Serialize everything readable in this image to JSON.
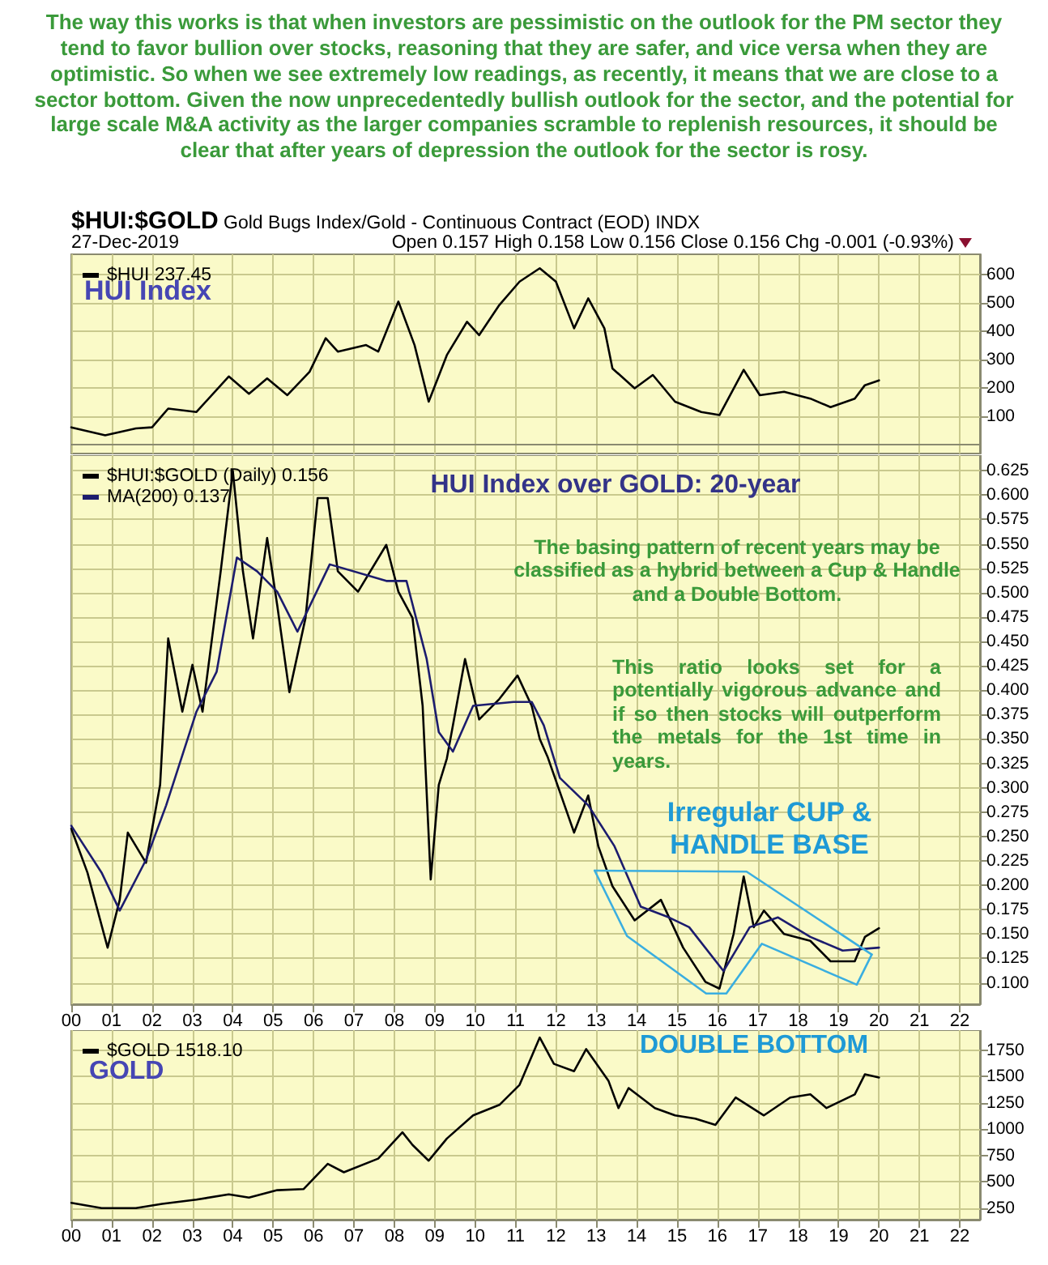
{
  "chart_data": [
    {
      "type": "line",
      "title": "$HUI:$GOLD",
      "subtitle": "Gold Bugs Index/Gold - Continuous Contract (EOD) INDX",
      "annotations": [
        "The way this works is that when investors are pessimistic on the outlook for the PM sector they tend to favor bullion over stocks, reasoning that they are safer, and vice versa when they are optimistic. So when we see extremely low readings, as recently, it means that we are close to a sector bottom. Given the now unprecedentedly bullish outlook for the sector, and the potential for large scale M&A activity as the larger companies scramble to replenish resources, it should be clear that after years of depression the outlook for the sector is rosy.",
        "27-Dec-2019",
        "Open 0.157  High 0.158  Low 0.156  Close 0.156  Chg -0.001 (-0.93%)",
        "HUI Index"
      ],
      "x": [
        2000,
        2000.84,
        2001.6,
        2002.0,
        2002.4,
        2003.1,
        2003.9,
        2004.4,
        2004.85,
        2005.35,
        2005.9,
        2006.3,
        2006.6,
        2007.3,
        2007.6,
        2008.1,
        2008.5,
        2008.85,
        2009.3,
        2009.8,
        2010.1,
        2010.6,
        2011.1,
        2011.6,
        2012.0,
        2012.45,
        2012.8,
        2013.2,
        2013.4,
        2013.95,
        2014.4,
        2014.95,
        2015.6,
        2016.05,
        2016.65,
        2017.05,
        2017.65,
        2018.3,
        2018.8,
        2019.4,
        2019.65,
        2020.0
      ],
      "series": [
        {
          "name": "$HUI 237.45",
          "color": "#000000",
          "values": [
            62,
            34,
            58,
            62,
            128,
            116,
            241,
            180,
            234,
            175,
            257,
            375,
            328,
            351,
            328,
            504,
            351,
            152,
            316,
            433,
            386,
            492,
            574,
            621,
            574,
            410,
            515,
            410,
            269,
            199,
            246,
            152,
            116,
            105,
            264,
            175,
            187,
            163,
            133,
            163,
            210,
            227
          ]
        }
      ],
      "xlim": [
        2000,
        2022.5
      ],
      "ylim": [
        -30,
        670
      ],
      "yticks": [
        100,
        200,
        300,
        400,
        500,
        600
      ],
      "xticks": [
        {
          "value": 2000,
          "label": null
        },
        {
          "value": 2001,
          "label": null
        },
        {
          "value": 2002,
          "label": null
        },
        {
          "value": 2003,
          "label": null
        },
        {
          "value": 2004,
          "label": null
        },
        {
          "value": 2005,
          "label": null
        },
        {
          "value": 2006,
          "label": null
        },
        {
          "value": 2007,
          "label": null
        },
        {
          "value": 2008,
          "label": null
        },
        {
          "value": 2009,
          "label": null
        },
        {
          "value": 2010,
          "label": null
        },
        {
          "value": 2011,
          "label": null
        },
        {
          "value": 2012,
          "label": null
        },
        {
          "value": 2013,
          "label": null
        },
        {
          "value": 2014,
          "label": null
        },
        {
          "value": 2015,
          "label": null
        },
        {
          "value": 2016,
          "label": null
        },
        {
          "value": 2017,
          "label": null
        },
        {
          "value": 2018,
          "label": null
        },
        {
          "value": 2019,
          "label": null
        },
        {
          "value": 2020,
          "label": null
        },
        {
          "value": 2021,
          "label": null
        },
        {
          "value": 2022,
          "label": null
        }
      ],
      "tick_labels": "y",
      "grid": true,
      "legend": "top left"
    },
    {
      "type": "line",
      "annotations": [
        "HUI Index over GOLD: 20-year",
        "The basing pattern of recent years may be classified as a hybrid between a Cup & Handle and a Double Bottom.",
        "This ratio looks set for a potentially vigorous advance and if so then stocks will outperform the metals for the 1st time in years.",
        "Irregular CUP & HANDLE BASE"
      ],
      "series": [
        {
          "name": "$HUI:$GOLD (Daily) 0.156",
          "color": "#000000",
          "x": [
            2000,
            2000.4,
            2000.9,
            2001.2,
            2001.4,
            2001.85,
            2002.2,
            2002.4,
            2002.75,
            2003.0,
            2003.25,
            2003.7,
            2004.0,
            2004.25,
            2004.5,
            2004.85,
            2005.1,
            2005.4,
            2005.8,
            2006.1,
            2006.35,
            2006.6,
            2007.1,
            2007.8,
            2008.1,
            2008.45,
            2008.7,
            2008.9,
            2009.1,
            2009.3,
            2009.75,
            2010.1,
            2010.6,
            2011.05,
            2011.4,
            2011.6,
            2011.8,
            2012.45,
            2012.8,
            2013.05,
            2013.4,
            2013.95,
            2014.6,
            2015.15,
            2015.7,
            2016.05,
            2016.4,
            2016.65,
            2016.9,
            2017.15,
            2017.65,
            2018.3,
            2018.8,
            2019.4,
            2019.65,
            2020.0
          ],
          "values": [
            0.258,
            0.213,
            0.136,
            0.185,
            0.254,
            0.223,
            0.303,
            0.453,
            0.378,
            0.426,
            0.378,
            0.522,
            0.625,
            0.522,
            0.453,
            0.556,
            0.487,
            0.398,
            0.474,
            0.597,
            0.597,
            0.522,
            0.501,
            0.549,
            0.501,
            0.474,
            0.384,
            0.206,
            0.303,
            0.33,
            0.432,
            0.37,
            0.391,
            0.415,
            0.384,
            0.35,
            0.331,
            0.254,
            0.292,
            0.24,
            0.199,
            0.164,
            0.185,
            0.136,
            0.101,
            0.094,
            0.15,
            0.209,
            0.157,
            0.174,
            0.15,
            0.143,
            0.122,
            0.122,
            0.147,
            0.156
          ]
        },
        {
          "name": "MA(200) 0.137",
          "color": "#1c1c6e",
          "x": [
            2000,
            2000.75,
            2001.2,
            2001.85,
            2002.35,
            2003.1,
            2003.6,
            2004.1,
            2004.6,
            2005.1,
            2005.6,
            2006.4,
            2007.8,
            2008.3,
            2008.8,
            2009.1,
            2009.45,
            2009.95,
            2010.95,
            2011.4,
            2011.7,
            2012.1,
            2012.8,
            2013.45,
            2014.1,
            2014.8,
            2015.3,
            2016.15,
            2016.8,
            2017.5,
            2018.3,
            2019.1,
            2020.0
          ],
          "values": [
            0.261,
            0.213,
            0.174,
            0.226,
            0.282,
            0.378,
            0.419,
            0.536,
            0.522,
            0.501,
            0.46,
            0.529,
            0.512,
            0.512,
            0.432,
            0.357,
            0.337,
            0.384,
            0.388,
            0.388,
            0.364,
            0.31,
            0.282,
            0.24,
            0.178,
            0.167,
            0.157,
            0.112,
            0.157,
            0.167,
            0.147,
            0.133,
            0.136
          ]
        },
        {
          "color": "#3aaee0",
          "x": [
            2012.96,
            2016.72,
            2019.82
          ],
          "values": [
            0.215,
            0.214,
            0.129
          ]
        },
        {
          "color": "#3aaee0",
          "x": [
            2012.96,
            2013.76,
            2015.72,
            2016.22,
            2017.1,
            2019.45,
            2019.82
          ],
          "values": [
            0.215,
            0.148,
            0.089,
            0.089,
            0.14,
            0.098,
            0.129
          ]
        }
      ],
      "xlim": [
        2000,
        2022.5
      ],
      "ylim": [
        0.078,
        0.641
      ],
      "yticks": [
        {
          "value": 0.1,
          "label": "0.100"
        },
        0.125,
        {
          "value": 0.15,
          "label": "0.150"
        },
        0.175,
        {
          "value": 0.2,
          "label": "0.200"
        },
        0.225,
        {
          "value": 0.25,
          "label": "0.250"
        },
        0.275,
        {
          "value": 0.3,
          "label": "0.300"
        },
        0.325,
        {
          "value": 0.35,
          "label": "0.350"
        },
        0.375,
        {
          "value": 0.4,
          "label": "0.400"
        },
        0.425,
        {
          "value": 0.45,
          "label": "0.450"
        },
        0.475,
        {
          "value": 0.5,
          "label": "0.500"
        },
        0.525,
        {
          "value": 0.55,
          "label": "0.550"
        },
        0.575,
        {
          "value": 0.6,
          "label": "0.600"
        },
        0.625
      ],
      "xticks": [
        {
          "value": 2000,
          "label": "00"
        },
        {
          "value": 2001,
          "label": "01"
        },
        {
          "value": 2002,
          "label": "02"
        },
        {
          "value": 2003,
          "label": "03"
        },
        {
          "value": 2004,
          "label": "04"
        },
        {
          "value": 2005,
          "label": "05"
        },
        {
          "value": 2006,
          "label": "06"
        },
        {
          "value": 2007,
          "label": "07"
        },
        {
          "value": 2008,
          "label": "08"
        },
        {
          "value": 2009,
          "label": "09"
        },
        {
          "value": 2010,
          "label": "10"
        },
        {
          "value": 2011,
          "label": "11"
        },
        {
          "value": 2012,
          "label": "12"
        },
        {
          "value": 2013,
          "label": "13"
        },
        {
          "value": 2014,
          "label": "14"
        },
        {
          "value": 2015,
          "label": "15"
        },
        {
          "value": 2016,
          "label": "16"
        },
        {
          "value": 2017,
          "label": "17"
        },
        {
          "value": 2018,
          "label": "18"
        },
        {
          "value": 2019,
          "label": "19"
        },
        {
          "value": 2020,
          "label": "20"
        },
        {
          "value": 2021,
          "label": "21"
        },
        {
          "value": 2022,
          "label": "22"
        }
      ],
      "grid": true,
      "legend": "top left"
    },
    {
      "type": "line",
      "annotations": [
        "GOLD",
        "DOUBLE BOTTOM"
      ],
      "x": [
        2000,
        2000.75,
        2001.6,
        2002.25,
        2003.1,
        2003.9,
        2004.4,
        2005.1,
        2005.75,
        2006.35,
        2006.75,
        2007.6,
        2008.2,
        2008.45,
        2008.85,
        2009.3,
        2009.95,
        2010.6,
        2011.1,
        2011.6,
        2011.95,
        2012.45,
        2012.75,
        2013.3,
        2013.55,
        2013.8,
        2014.45,
        2014.95,
        2015.45,
        2015.95,
        2016.45,
        2017.15,
        2017.8,
        2018.3,
        2018.7,
        2019.4,
        2019.65,
        2020.0
      ],
      "series": [
        {
          "name": "$GOLD 1518.10",
          "color": "#000000",
          "values": [
            300,
            250,
            250,
            290,
            330,
            380,
            350,
            420,
            430,
            670,
            590,
            720,
            970,
            850,
            700,
            910,
            1130,
            1230,
            1420,
            1870,
            1620,
            1550,
            1760,
            1460,
            1200,
            1390,
            1200,
            1130,
            1100,
            1040,
            1300,
            1130,
            1300,
            1330,
            1200,
            1330,
            1520,
            1490
          ]
        }
      ],
      "xlim": [
        2000,
        2022.5
      ],
      "ylim": [
        140,
        1940
      ],
      "yticks": [
        250,
        500,
        750,
        1000,
        1250,
        1500,
        1750
      ],
      "xticks": [
        {
          "value": 2000,
          "label": "00"
        },
        {
          "value": 2001,
          "label": "01"
        },
        {
          "value": 2002,
          "label": "02"
        },
        {
          "value": 2003,
          "label": "03"
        },
        {
          "value": 2004,
          "label": "04"
        },
        {
          "value": 2005,
          "label": "05"
        },
        {
          "value": 2006,
          "label": "06"
        },
        {
          "value": 2007,
          "label": "07"
        },
        {
          "value": 2008,
          "label": "08"
        },
        {
          "value": 2009,
          "label": "09"
        },
        {
          "value": 2010,
          "label": "10"
        },
        {
          "value": 2011,
          "label": "11"
        },
        {
          "value": 2012,
          "label": "12"
        },
        {
          "value": 2013,
          "label": "13"
        },
        {
          "value": 2014,
          "label": "14"
        },
        {
          "value": 2015,
          "label": "15"
        },
        {
          "value": 2016,
          "label": "16"
        },
        {
          "value": 2017,
          "label": "17"
        },
        {
          "value": 2018,
          "label": "18"
        },
        {
          "value": 2019,
          "label": "19"
        },
        {
          "value": 2020,
          "label": "20"
        },
        {
          "value": 2021,
          "label": "21"
        },
        {
          "value": 2022,
          "label": "22"
        }
      ],
      "grid": true,
      "legend": "top left"
    }
  ]
}
